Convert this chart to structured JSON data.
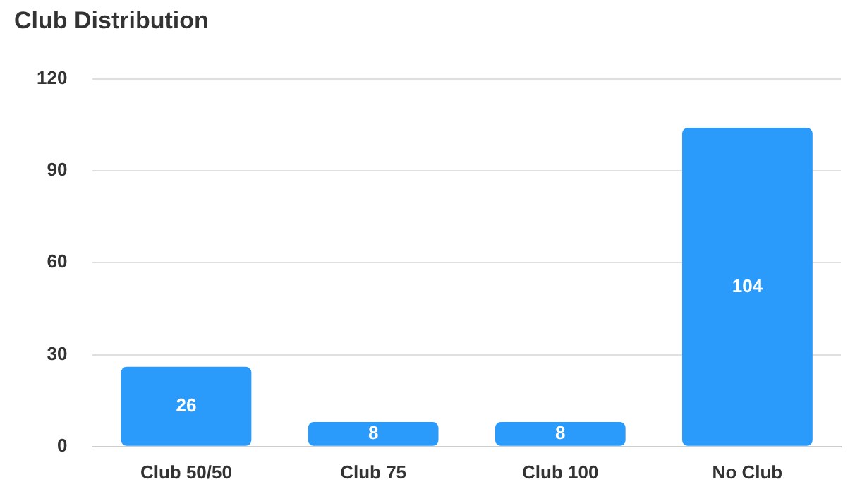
{
  "chart_data": {
    "type": "bar",
    "title": "Club Distribution",
    "categories": [
      "Club 50/50",
      "Club 75",
      "Club 100",
      "No Club"
    ],
    "values": [
      26,
      8,
      8,
      104
    ],
    "color": "#2b9bfb",
    "ylim": [
      0,
      120
    ],
    "yticks": [
      0,
      30,
      60,
      90,
      120
    ],
    "grid": "y",
    "data_labels": true
  }
}
